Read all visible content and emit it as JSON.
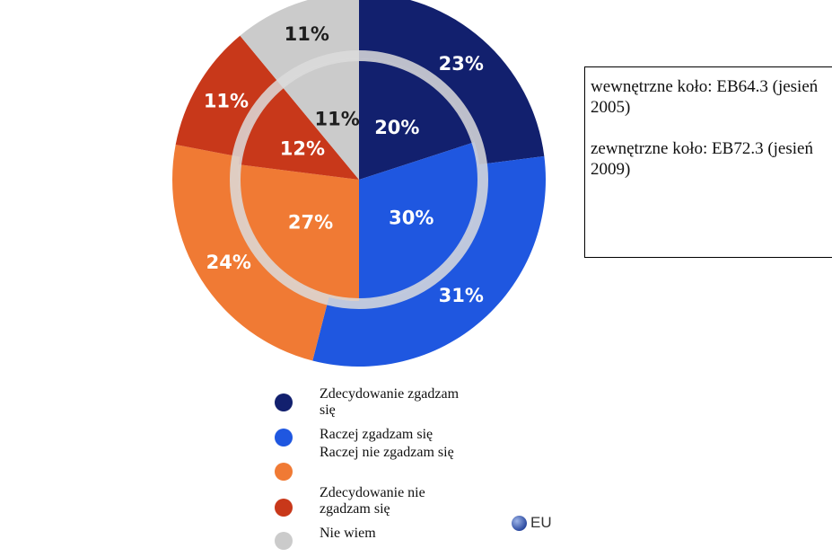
{
  "chart_data": {
    "type": "pie",
    "rings": [
      {
        "name": "wewnętrzne koło",
        "values": [
          20,
          30,
          27,
          12,
          11
        ],
        "labels": [
          "20%",
          "30%",
          "27%",
          "12%",
          "11%"
        ]
      },
      {
        "name": "zewnętrzne koło",
        "values": [
          23,
          31,
          24,
          11,
          11
        ],
        "labels": [
          "23%",
          "31%",
          "24%",
          "11%",
          "11%"
        ]
      }
    ],
    "categories": [
      "Zdecydowanie zgadzam się",
      "Raczej zgadzam się",
      "Raczej nie zgadzam się",
      "Zdecydowanie nie zgadzam się",
      "Nie wiem"
    ],
    "colors": [
      "#12206e",
      "#1f57e0",
      "#f07a34",
      "#c8381a",
      "#cbcbcb"
    ],
    "legend_placement": "bottom"
  },
  "note": {
    "line1": "wewnętrzne koło: EB64.3 (jesień 2005)",
    "line2": "zewnętrzne koło: EB72.3 (jesień 2009)"
  },
  "legend": [
    {
      "label": "Zdecydowanie zgadzam się",
      "color": "#12206e"
    },
    {
      "label": "Raczej zgadzam się",
      "color": "#1f57e0"
    },
    {
      "label": "Raczej nie zgadzam się",
      "color": "#f07a34"
    },
    {
      "label": "Zdecydowanie nie zgadzam się",
      "color": "#c8381a"
    },
    {
      "label": "Nie wiem",
      "color": "#cbcbcb"
    }
  ],
  "source_badge": "EU",
  "source_badge_icon": "globe-icon"
}
